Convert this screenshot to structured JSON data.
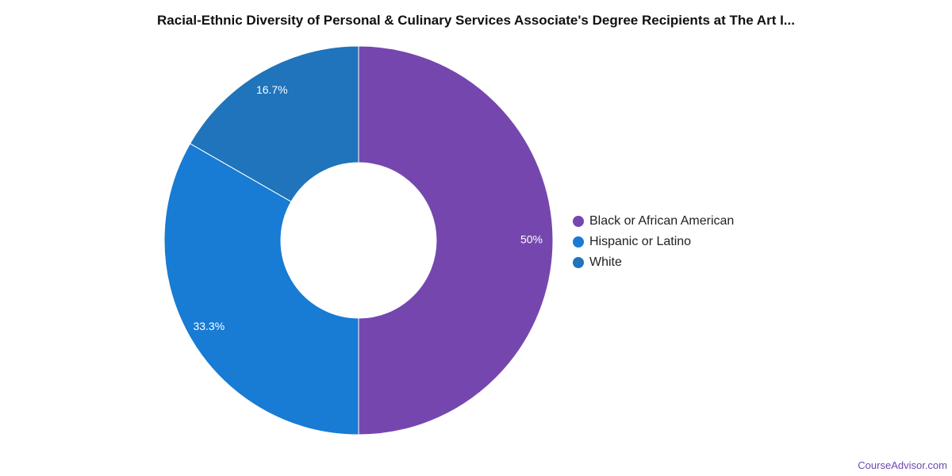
{
  "chart_data": {
    "type": "pie",
    "title": "Racial-Ethnic Diversity of Personal & Culinary Services Associate's Degree Recipients at The Art I...",
    "categories": [
      "Black or African American",
      "Hispanic or Latino",
      "White"
    ],
    "values": [
      50,
      33.3,
      16.7
    ],
    "data_labels": [
      "50%",
      "33.3%",
      "16.7%"
    ],
    "colors": [
      "#7547ae",
      "#187bd4",
      "#1f74bb"
    ],
    "donut": true,
    "start": "top, clockwise",
    "legend_position": "right"
  },
  "credit": "CourseAdvisor.com"
}
